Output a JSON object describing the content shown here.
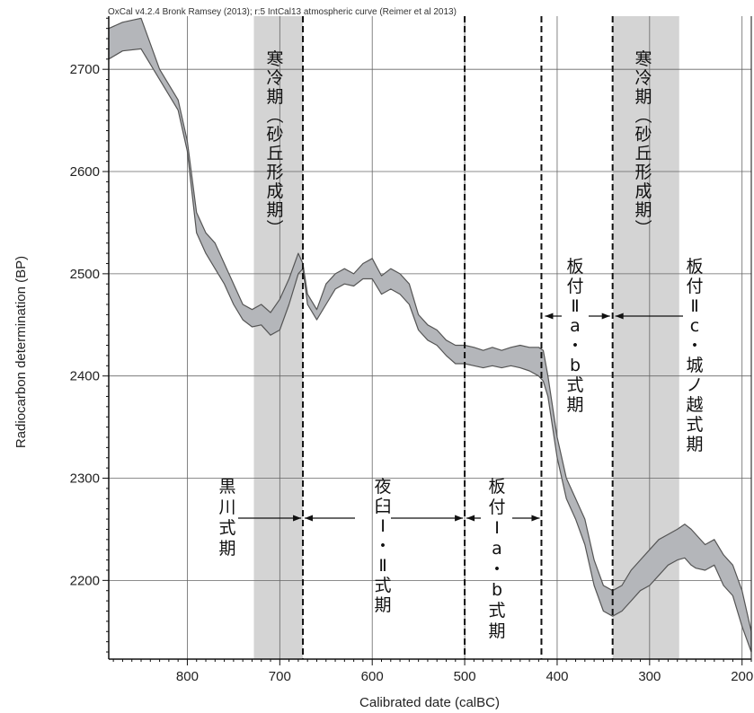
{
  "chart_data": {
    "type": "area",
    "header": "OxCal v4.2.4 Bronk Ramsey (2013); r:5 IntCal13 atmospheric curve (Reimer et al 2013)",
    "xlabel": "Calibrated date (calBC)",
    "ylabel": "Radiocarbon determination (BP)",
    "xlim": [
      885,
      190
    ],
    "ylim": [
      2123,
      2752
    ],
    "x_ticks": [
      800,
      700,
      600,
      500,
      400,
      300,
      200
    ],
    "y_ticks": [
      2200,
      2300,
      2400,
      2500,
      2600,
      2700
    ],
    "grid": true,
    "band_color": "#b4b6ba",
    "band_edge_color": "#555555",
    "shade_color": "#d4d4d4",
    "curve": {
      "x": [
        885,
        870,
        850,
        830,
        810,
        800,
        790,
        780,
        770,
        760,
        750,
        740,
        730,
        720,
        710,
        700,
        690,
        680,
        675,
        670,
        660,
        650,
        640,
        630,
        620,
        610,
        600,
        590,
        580,
        570,
        560,
        550,
        540,
        530,
        520,
        510,
        500,
        490,
        480,
        470,
        460,
        450,
        440,
        430,
        420,
        415,
        410,
        400,
        390,
        380,
        370,
        360,
        350,
        340,
        330,
        320,
        310,
        300,
        290,
        280,
        270,
        262,
        255,
        250,
        240,
        230,
        220,
        210,
        200,
        190
      ],
      "upper": [
        2740,
        2746,
        2750,
        2700,
        2670,
        2630,
        2560,
        2540,
        2530,
        2510,
        2490,
        2470,
        2465,
        2470,
        2462,
        2475,
        2495,
        2520,
        2510,
        2480,
        2465,
        2490,
        2500,
        2505,
        2500,
        2510,
        2515,
        2498,
        2505,
        2500,
        2490,
        2460,
        2450,
        2445,
        2435,
        2430,
        2430,
        2428,
        2425,
        2428,
        2425,
        2428,
        2430,
        2428,
        2428,
        2425,
        2400,
        2340,
        2300,
        2280,
        2260,
        2220,
        2195,
        2190,
        2195,
        2210,
        2220,
        2230,
        2240,
        2245,
        2250,
        2255,
        2250,
        2245,
        2235,
        2240,
        2225,
        2215,
        2190,
        2150
      ],
      "lower": [
        2710,
        2718,
        2720,
        2690,
        2660,
        2620,
        2540,
        2520,
        2505,
        2490,
        2470,
        2455,
        2448,
        2450,
        2440,
        2445,
        2470,
        2500,
        2505,
        2470,
        2455,
        2470,
        2485,
        2490,
        2488,
        2495,
        2495,
        2480,
        2485,
        2480,
        2470,
        2445,
        2435,
        2430,
        2420,
        2412,
        2412,
        2410,
        2408,
        2410,
        2408,
        2410,
        2408,
        2405,
        2400,
        2395,
        2380,
        2320,
        2280,
        2260,
        2235,
        2195,
        2170,
        2165,
        2170,
        2180,
        2190,
        2195,
        2205,
        2215,
        2220,
        2222,
        2215,
        2212,
        2210,
        2215,
        2195,
        2185,
        2155,
        2130
      ]
    },
    "shaded_periods": [
      {
        "from": 728,
        "to": 675
      },
      {
        "from": 340,
        "to": 268
      }
    ],
    "boundaries": [
      675,
      500,
      417,
      340
    ],
    "annotations": [
      {
        "id": "cold-period-1",
        "lines": [
          "寒",
          "冷",
          "期",
          "︵",
          "砂",
          "丘",
          "形",
          "成",
          "期",
          "︶"
        ]
      },
      {
        "id": "cold-period-2",
        "lines": [
          "寒",
          "冷",
          "期",
          "︵",
          "砂",
          "丘",
          "形",
          "成",
          "期",
          "︶"
        ]
      },
      {
        "id": "kurokawa",
        "lines": [
          "黒",
          "川",
          "式",
          "期"
        ]
      },
      {
        "id": "yausu",
        "lines": [
          "夜",
          "臼",
          "Ⅰ",
          "・",
          "Ⅱ",
          "式",
          "期"
        ]
      },
      {
        "id": "itatsuke-1",
        "lines": [
          "板",
          "付",
          "Ⅰ",
          "a",
          "・",
          "b",
          "式",
          "期"
        ]
      },
      {
        "id": "itatsuke-2ab",
        "lines": [
          "板",
          "付",
          "Ⅱ",
          "a",
          "・",
          "b",
          "式",
          "期"
        ]
      },
      {
        "id": "itatsuke-2c",
        "lines": [
          "板",
          "付",
          "Ⅱ",
          "c",
          "・",
          "城",
          "ノ",
          "越",
          "式",
          "期"
        ]
      }
    ]
  }
}
